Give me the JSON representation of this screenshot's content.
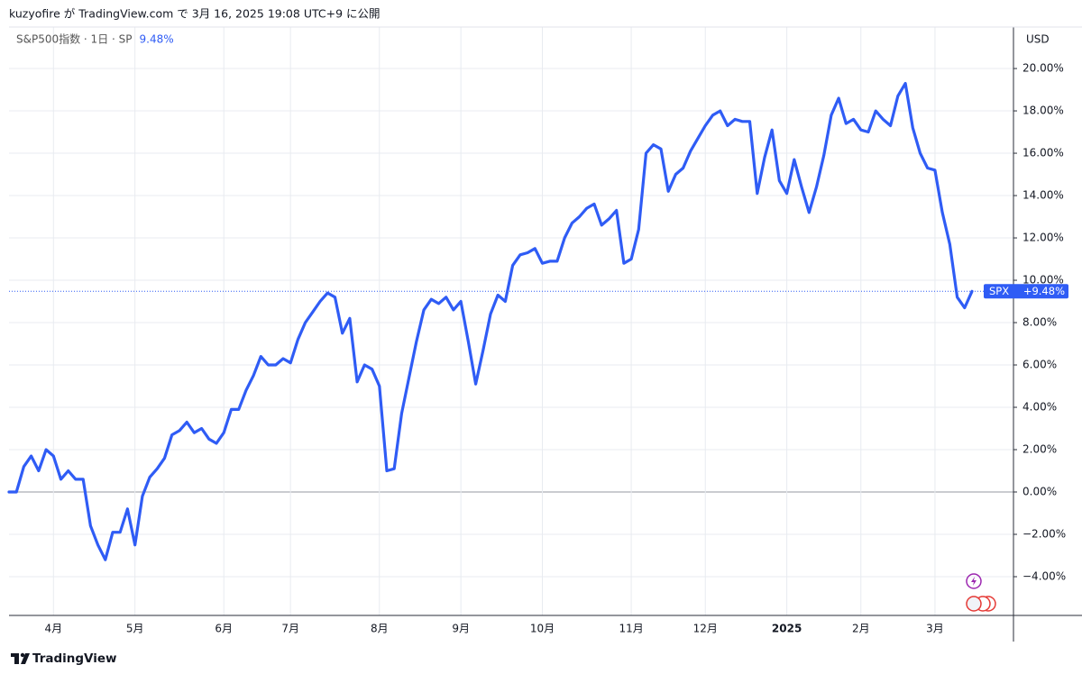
{
  "header": {
    "text": "kuzyofire が TradingView.com で 3月 16, 2025 19:08 UTC+9 に公開"
  },
  "footer": {
    "brand": "TradingView"
  },
  "chart_data": {
    "type": "line",
    "legend": {
      "title": "S&P500指数 · 1日 · SP",
      "change": "9.48%"
    },
    "currency": "USD",
    "categories": [
      null,
      null,
      null,
      null,
      null,
      null,
      "4月",
      null,
      null,
      null,
      null,
      null,
      null,
      null,
      null,
      null,
      null,
      "5月",
      null,
      null,
      null,
      null,
      null,
      null,
      null,
      null,
      null,
      null,
      null,
      "6月",
      null,
      null,
      null,
      null,
      null,
      null,
      null,
      null,
      "7月",
      null,
      null,
      null,
      null,
      null,
      null,
      null,
      null,
      null,
      null,
      null,
      "8月",
      null,
      null,
      null,
      null,
      null,
      null,
      null,
      null,
      null,
      null,
      "9月",
      null,
      null,
      null,
      null,
      null,
      null,
      null,
      null,
      null,
      null,
      "10月",
      null,
      null,
      null,
      null,
      null,
      null,
      null,
      null,
      null,
      null,
      null,
      "11月",
      null,
      null,
      null,
      null,
      null,
      null,
      null,
      null,
      null,
      "12月",
      null,
      null,
      null,
      null,
      null,
      null,
      null,
      null,
      null,
      null,
      "2025",
      null,
      null,
      null,
      null,
      null,
      null,
      null,
      null,
      null,
      "2月",
      null,
      null,
      null,
      null,
      null,
      null,
      null,
      null,
      null,
      "3月",
      null,
      null,
      null,
      null,
      null
    ],
    "series": [
      {
        "name": "SPX",
        "color": "#2f5cf5",
        "last_label": "+9.48%",
        "values": [
          0.0,
          0.0,
          1.2,
          1.7,
          1.0,
          2.0,
          1.7,
          0.6,
          1.0,
          0.6,
          0.6,
          -1.6,
          -2.5,
          -3.2,
          -1.9,
          -1.9,
          -0.8,
          -2.5,
          -0.2,
          0.7,
          1.1,
          1.6,
          2.7,
          2.9,
          3.3,
          2.8,
          3.0,
          2.5,
          2.3,
          2.8,
          3.9,
          3.9,
          4.8,
          5.5,
          6.4,
          6.0,
          6.0,
          6.3,
          6.1,
          7.2,
          8.0,
          8.5,
          9.0,
          9.4,
          9.2,
          7.5,
          8.2,
          5.2,
          6.0,
          5.8,
          5.0,
          1.0,
          1.1,
          3.7,
          5.4,
          7.1,
          8.6,
          9.1,
          8.9,
          9.2,
          8.6,
          9.0,
          7.1,
          5.1,
          6.7,
          8.4,
          9.3,
          9.0,
          10.7,
          11.2,
          11.3,
          11.5,
          10.8,
          10.9,
          10.9,
          12.0,
          12.7,
          13.0,
          13.4,
          13.6,
          12.6,
          12.9,
          13.3,
          10.8,
          11.0,
          12.4,
          16.0,
          16.4,
          16.2,
          14.2,
          15.0,
          15.3,
          16.1,
          16.7,
          17.3,
          17.8,
          18.0,
          17.3,
          17.6,
          17.5,
          17.5,
          14.1,
          15.8,
          17.1,
          14.7,
          14.1,
          15.7,
          14.4,
          13.2,
          14.4,
          15.9,
          17.8,
          18.6,
          17.4,
          17.6,
          17.1,
          17.0,
          18.0,
          17.6,
          17.3,
          18.7,
          19.3,
          17.2,
          16.0,
          15.3,
          15.2,
          13.2,
          11.7,
          9.2,
          8.7,
          9.48
        ]
      }
    ],
    "ylim": [
      -5.83,
      21.96
    ],
    "yticks": [
      {
        "value": -4,
        "label": "−4.00%"
      },
      {
        "value": -2,
        "label": "−2.00%"
      },
      {
        "value": 0,
        "label": "0.00%"
      },
      {
        "value": 2,
        "label": "2.00%"
      },
      {
        "value": 4,
        "label": "4.00%"
      },
      {
        "value": 6,
        "label": "6.00%"
      },
      {
        "value": 8,
        "label": "8.00%"
      },
      {
        "value": 10,
        "label": "10.00%"
      },
      {
        "value": 12,
        "label": "12.00%"
      },
      {
        "value": 14,
        "label": "14.00%"
      },
      {
        "value": 16,
        "label": "16.00%"
      },
      {
        "value": 18,
        "label": "18.00%"
      },
      {
        "value": 20,
        "label": "20.00%"
      }
    ],
    "grid": true
  }
}
